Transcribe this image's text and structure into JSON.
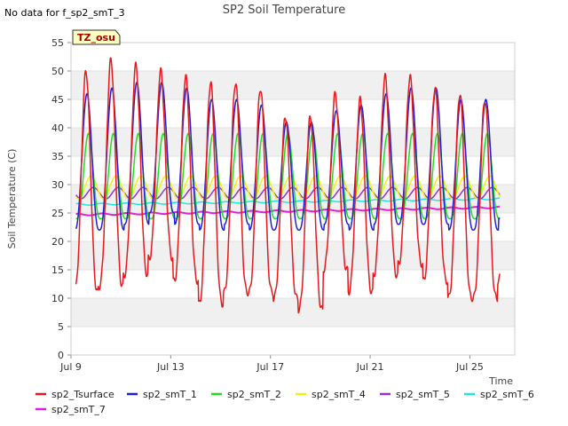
{
  "chart_data": {
    "type": "line",
    "title": "SP2 Soil Temperature",
    "subtitle": "",
    "no_data_note": "No data for f_sp2_smT_3",
    "badge": "TZ_osu",
    "xlabel": "Time",
    "ylabel": "Soil Temperature (C)",
    "xlim": [
      0,
      17.8
    ],
    "ylim": [
      0,
      55
    ],
    "x_ticks": [
      {
        "value": 0,
        "label": "Jul 9"
      },
      {
        "value": 4,
        "label": "Jul 13"
      },
      {
        "value": 8,
        "label": "Jul 17"
      },
      {
        "value": 12,
        "label": "Jul 21"
      },
      {
        "value": 16,
        "label": "Jul 25"
      }
    ],
    "y_ticks": [
      0,
      5,
      10,
      15,
      20,
      25,
      30,
      35,
      40,
      45,
      50,
      55
    ],
    "grid": true,
    "legend_position": "bottom",
    "x_span": [
      0.2,
      17.2
    ],
    "day_phase": 0.6,
    "daily_max": {
      "sp2_Tsurface": [
        50,
        52,
        51,
        50,
        49,
        48,
        48,
        47,
        42,
        42,
        46,
        45,
        49,
        49,
        47,
        46,
        45,
        44
      ],
      "sp2_smT_1": [
        46,
        47,
        48,
        48,
        47,
        45,
        45,
        44,
        41,
        41,
        43,
        44,
        46,
        47,
        47,
        45,
        45,
        45
      ]
    },
    "daily_min": {
      "sp2_Tsurface": [
        11,
        12,
        14,
        17,
        13,
        9,
        11,
        11,
        10,
        8,
        15,
        11,
        14,
        16,
        13,
        10,
        10,
        13
      ],
      "sp2_smT_1": [
        22,
        22,
        23,
        25,
        23,
        22,
        23,
        22,
        22,
        22,
        23,
        22,
        23,
        23,
        23,
        22,
        22,
        24
      ]
    },
    "series": [
      {
        "name": "sp2_Tsurface",
        "color": "#e41a1c"
      },
      {
        "name": "sp2_smT_1",
        "color": "#1f1fd6"
      },
      {
        "name": "sp2_smT_2",
        "color": "#22dd22",
        "min": 24,
        "max": 39
      },
      {
        "name": "sp2_smT_4",
        "color": "#f2f20c",
        "min": 27.5,
        "max": 31.5
      },
      {
        "name": "sp2_smT_5",
        "color": "#9932cc",
        "min": 27.5,
        "max": 29.5
      },
      {
        "name": "sp2_smT_6",
        "color": "#22e5e5",
        "start": 26.5,
        "end": 27.5
      },
      {
        "name": "sp2_smT_7",
        "color": "#dd22dd",
        "start": 24.7,
        "end": 26.0
      }
    ]
  }
}
